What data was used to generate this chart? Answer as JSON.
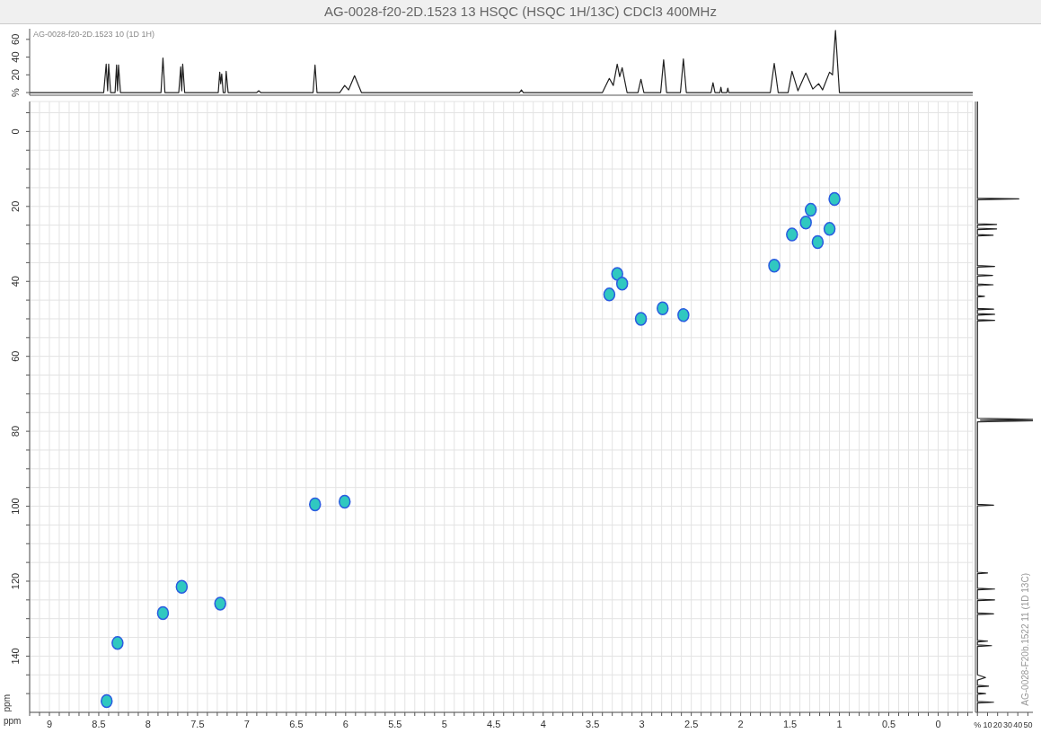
{
  "chart_data": [
    {
      "type": "line",
      "title": "AG-0028-f20-2D.1523 13 HSQC (HSQC 1H/13C) CDCl3 400MHz",
      "xlim": [
        9.2,
        -0.35
      ],
      "ylim": [
        -3,
        72
      ],
      "yticks": [
        {
          "value": 0,
          "label": "%"
        },
        20,
        40,
        60
      ],
      "tick_labels": "y",
      "annotations": [
        "AG-0028-f20-2D.1523 10 (1D 1H)"
      ],
      "series": [
        {
          "color": "#202020",
          "x": [
            9.2,
            8.45,
            8.425,
            8.41,
            8.4,
            8.38,
            8.335,
            8.32,
            8.31,
            8.3,
            8.28,
            7.87,
            7.85,
            7.83,
            7.69,
            7.67,
            7.66,
            7.65,
            7.63,
            7.29,
            7.275,
            7.265,
            7.255,
            7.24,
            7.22,
            7.21,
            7.19,
            6.9,
            6.88,
            6.86,
            6.33,
            6.31,
            6.29,
            6.06,
            6.01,
            5.97,
            5.91,
            5.84,
            4.24,
            4.22,
            4.2,
            3.4,
            3.33,
            3.29,
            3.25,
            3.225,
            3.2,
            3.15,
            3.04,
            3.01,
            2.98,
            2.81,
            2.78,
            2.75,
            2.61,
            2.58,
            2.55,
            2.3,
            2.28,
            2.26,
            2.21,
            2.2,
            2.19,
            2.14,
            2.13,
            2.12,
            1.7,
            1.66,
            1.62,
            1.52,
            1.48,
            1.42,
            1.34,
            1.27,
            1.21,
            1.17,
            1.1,
            1.07,
            1.04,
            1.0,
            -0.35
          ],
          "values": [
            0,
            0,
            32,
            2,
            32,
            0,
            0,
            31,
            2,
            31,
            0,
            0,
            39,
            0,
            0,
            29,
            2,
            32,
            0,
            0,
            23,
            10,
            21,
            0,
            0,
            24,
            0,
            0,
            2,
            0,
            0,
            31,
            0,
            0,
            8,
            3,
            19,
            0,
            0,
            3,
            0,
            0,
            16,
            8,
            32,
            18,
            28,
            0,
            0,
            15,
            0,
            0,
            37,
            0,
            0,
            38,
            0,
            0,
            11,
            0,
            0,
            6,
            0,
            0,
            5,
            0,
            0,
            33,
            0,
            0,
            24,
            2,
            22,
            4,
            10,
            3,
            23,
            20,
            70,
            0,
            0
          ]
        }
      ]
    },
    {
      "type": "scatter",
      "xlabel": "ppm",
      "ylabel": "ppm",
      "grid": true,
      "marker": "circle",
      "xlim": [
        9.2,
        -0.35
      ],
      "ylim": [
        155,
        -8
      ],
      "xticks": [
        {
          "value": 9.2,
          "label": null
        },
        {
          "value": 9.1,
          "label": null
        },
        9,
        {
          "value": 8.9,
          "label": null
        },
        {
          "value": 8.8,
          "label": null
        },
        {
          "value": 8.7,
          "label": null
        },
        {
          "value": 8.6,
          "label": null
        },
        8.5,
        {
          "value": 8.4,
          "label": null
        },
        {
          "value": 8.3,
          "label": null
        },
        {
          "value": 8.2,
          "label": null
        },
        {
          "value": 8.1,
          "label": null
        },
        8,
        {
          "value": 7.9,
          "label": null
        },
        {
          "value": 7.8,
          "label": null
        },
        {
          "value": 7.7,
          "label": null
        },
        {
          "value": 7.6,
          "label": null
        },
        7.5,
        {
          "value": 7.4,
          "label": null
        },
        {
          "value": 7.3,
          "label": null
        },
        {
          "value": 7.2,
          "label": null
        },
        {
          "value": 7.1,
          "label": null
        },
        7,
        {
          "value": 6.9,
          "label": null
        },
        {
          "value": 6.8,
          "label": null
        },
        {
          "value": 6.7,
          "label": null
        },
        {
          "value": 6.6,
          "label": null
        },
        6.5,
        {
          "value": 6.4,
          "label": null
        },
        {
          "value": 6.3,
          "label": null
        },
        {
          "value": 6.2,
          "label": null
        },
        {
          "value": 6.1,
          "label": null
        },
        6,
        {
          "value": 5.9,
          "label": null
        },
        {
          "value": 5.8,
          "label": null
        },
        {
          "value": 5.7,
          "label": null
        },
        {
          "value": 5.6,
          "label": null
        },
        5.5,
        {
          "value": 5.4,
          "label": null
        },
        {
          "value": 5.3,
          "label": null
        },
        {
          "value": 5.2,
          "label": null
        },
        {
          "value": 5.1,
          "label": null
        },
        5,
        {
          "value": 4.9,
          "label": null
        },
        {
          "value": 4.8,
          "label": null
        },
        {
          "value": 4.7,
          "label": null
        },
        {
          "value": 4.6,
          "label": null
        },
        4.5,
        {
          "value": 4.4,
          "label": null
        },
        {
          "value": 4.3,
          "label": null
        },
        {
          "value": 4.2,
          "label": null
        },
        {
          "value": 4.1,
          "label": null
        },
        4,
        {
          "value": 3.9,
          "label": null
        },
        {
          "value": 3.8,
          "label": null
        },
        {
          "value": 3.7,
          "label": null
        },
        {
          "value": 3.6,
          "label": null
        },
        3.5,
        {
          "value": 3.4,
          "label": null
        },
        {
          "value": 3.3,
          "label": null
        },
        {
          "value": 3.2,
          "label": null
        },
        {
          "value": 3.1,
          "label": null
        },
        3,
        {
          "value": 2.9,
          "label": null
        },
        {
          "value": 2.8,
          "label": null
        },
        {
          "value": 2.7,
          "label": null
        },
        {
          "value": 2.6,
          "label": null
        },
        2.5,
        {
          "value": 2.4,
          "label": null
        },
        {
          "value": 2.3,
          "label": null
        },
        {
          "value": 2.2,
          "label": null
        },
        {
          "value": 2.1,
          "label": null
        },
        2,
        {
          "value": 1.9,
          "label": null
        },
        {
          "value": 1.8,
          "label": null
        },
        {
          "value": 1.7,
          "label": null
        },
        {
          "value": 1.6,
          "label": null
        },
        1.5,
        {
          "value": 1.4,
          "label": null
        },
        {
          "value": 1.3,
          "label": null
        },
        {
          "value": 1.2,
          "label": null
        },
        {
          "value": 1.1,
          "label": null
        },
        1,
        {
          "value": 0.9,
          "label": null
        },
        {
          "value": 0.8,
          "label": null
        },
        {
          "value": 0.7,
          "label": null
        },
        {
          "value": 0.6,
          "label": null
        },
        0.5,
        {
          "value": 0.4,
          "label": null
        },
        {
          "value": 0.3,
          "label": null
        },
        {
          "value": 0.2,
          "label": null
        },
        {
          "value": 0.1,
          "label": null
        },
        0,
        {
          "value": -0.1,
          "label": null
        },
        {
          "value": -0.2,
          "label": null
        },
        {
          "value": -0.3,
          "label": null
        }
      ],
      "yticks": [
        {
          "value": -5,
          "label": null
        },
        0,
        {
          "value": 5,
          "label": null
        },
        {
          "value": 10,
          "label": null
        },
        {
          "value": 15,
          "label": null
        },
        20,
        {
          "value": 25,
          "label": null
        },
        {
          "value": 30,
          "label": null
        },
        {
          "value": 35,
          "label": null
        },
        40,
        {
          "value": 45,
          "label": null
        },
        {
          "value": 50,
          "label": null
        },
        {
          "value": 55,
          "label": null
        },
        60,
        {
          "value": 65,
          "label": null
        },
        {
          "value": 70,
          "label": null
        },
        {
          "value": 75,
          "label": null
        },
        80,
        {
          "value": 85,
          "label": null
        },
        {
          "value": 90,
          "label": null
        },
        {
          "value": 95,
          "label": null
        },
        100,
        {
          "value": 105,
          "label": null
        },
        {
          "value": 110,
          "label": null
        },
        {
          "value": 115,
          "label": null
        },
        120,
        {
          "value": 125,
          "label": null
        },
        {
          "value": 130,
          "label": null
        },
        {
          "value": 135,
          "label": null
        },
        140,
        {
          "value": 145,
          "label": null
        },
        {
          "value": 150,
          "label": null
        }
      ],
      "series": [
        {
          "color": "#30c8c0",
          "x": [
            8.42,
            8.31,
            7.85,
            7.66,
            7.27,
            6.31,
            6.01,
            3.25,
            3.2,
            3.33,
            3.01,
            2.79,
            2.58,
            1.66,
            1.48,
            1.34,
            1.1,
            1.05,
            1.29,
            1.22
          ],
          "values": [
            152,
            136.5,
            128.5,
            121.5,
            126,
            99.5,
            98.8,
            38,
            40.6,
            43.5,
            50,
            47.2,
            49,
            35.8,
            27.5,
            24.3,
            26,
            18,
            20.9,
            29.5
          ]
        }
      ]
    },
    {
      "type": "line",
      "xlim": [
        -2,
        55
      ],
      "ylim": [
        155,
        -8
      ],
      "xticks": [
        {
          "value": 0,
          "label": "%"
        },
        10,
        20,
        30,
        40,
        50
      ],
      "tick_labels": "x",
      "annotations": [
        "AG-0028-F20b.1522 11 (1D 13C)"
      ],
      "series": [
        {
          "color": "#202020",
          "x": [
            0,
            0,
            41,
            0,
            0,
            19,
            0,
            0,
            19,
            0,
            0,
            15.5,
            0,
            0,
            17,
            0,
            0,
            15,
            0,
            0,
            15.5,
            0,
            0,
            7,
            0,
            0,
            16,
            0,
            0,
            17,
            0,
            0,
            17,
            0,
            0,
            55,
            3,
            55,
            0,
            0,
            16,
            0,
            0,
            10,
            0,
            0,
            17,
            0,
            0,
            17,
            0,
            0,
            16,
            0,
            0,
            10,
            0,
            0,
            14,
            0,
            0,
            8,
            0,
            0,
            11,
            0,
            0,
            8,
            0,
            0,
            16,
            0,
            0
          ],
          "values": [
            -8,
            17.8,
            18,
            18.2,
            24.6,
            24.8,
            25,
            25.8,
            26,
            26.2,
            27.5,
            27.7,
            27.9,
            35.8,
            36,
            36.2,
            38.2,
            38.4,
            38.6,
            40.7,
            40.9,
            41.1,
            43.8,
            44,
            44.2,
            47.2,
            47.4,
            47.6,
            48.6,
            48.8,
            49,
            50.2,
            50.4,
            50.6,
            76.5,
            76.8,
            77,
            77.2,
            77.5,
            99.5,
            99.7,
            99.9,
            117.6,
            117.8,
            118,
            121.9,
            122.1,
            122.3,
            124.8,
            125,
            125.2,
            128.5,
            128.7,
            128.9,
            135.8,
            136,
            136.2,
            137,
            137.2,
            137.4,
            145,
            145.7,
            146.4,
            147.8,
            148,
            148.2,
            149.8,
            150,
            150.2,
            152.1,
            152.3,
            152.5,
            155
          ]
        }
      ]
    }
  ]
}
